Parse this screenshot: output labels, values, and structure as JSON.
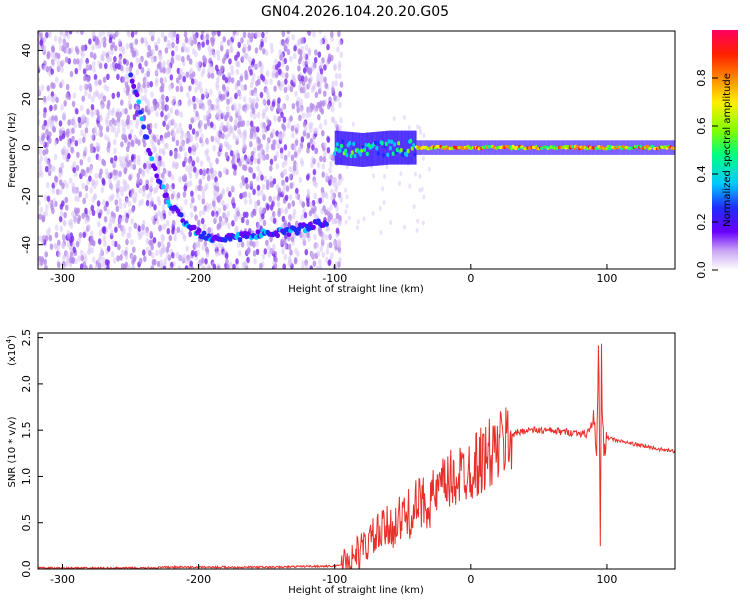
{
  "title": "GN04.2026.104.20.20.G05",
  "chart_data": [
    {
      "type": "heatmap",
      "xlabel": "Height of straight line (km)",
      "ylabel": "Frequency (Hz)",
      "xlim": [
        -318,
        150
      ],
      "ylim": [
        -50,
        48
      ],
      "xticks": [
        -300,
        -200,
        -100,
        0,
        100
      ],
      "yticks": [
        -40,
        -20,
        0,
        20,
        40
      ],
      "colorbar": {
        "label": "Normalized spectral amplitude",
        "range": [
          0,
          1
        ],
        "ticks": [
          "0.0",
          "0.2",
          "0.4",
          "0.6",
          "0.8"
        ],
        "colors": [
          "#ffffff",
          "#c9a6f2",
          "#6a00ff",
          "#1f2cff",
          "#00c8ff",
          "#00ff80",
          "#80ff00",
          "#ffee00",
          "#ff8800",
          "#ff2000",
          "#ff0060"
        ]
      },
      "signal_track": {
        "curve": [
          {
            "x": -250,
            "y": 30
          },
          {
            "x": -245,
            "y": 20
          },
          {
            "x": -240,
            "y": 8
          },
          {
            "x": -235,
            "y": -5
          },
          {
            "x": -228,
            "y": -15
          },
          {
            "x": -220,
            "y": -24
          },
          {
            "x": -210,
            "y": -31
          },
          {
            "x": -200,
            "y": -35
          },
          {
            "x": -190,
            "y": -37
          },
          {
            "x": -175,
            "y": -37
          },
          {
            "x": -160,
            "y": -36
          },
          {
            "x": -145,
            "y": -35
          },
          {
            "x": -130,
            "y": -34
          },
          {
            "x": -115,
            "y": -32
          },
          {
            "x": -105,
            "y": -30
          }
        ],
        "band": [
          {
            "x": -100,
            "y": 0
          },
          {
            "x": -80,
            "y": -1
          },
          {
            "x": -60,
            "y": 0
          },
          {
            "x": -40,
            "y": 0
          },
          {
            "x": -20,
            "y": 0
          },
          {
            "x": 0,
            "y": 0
          },
          {
            "x": 20,
            "y": 0
          },
          {
            "x": 40,
            "y": 0
          },
          {
            "x": 60,
            "y": 0
          },
          {
            "x": 80,
            "y": 0
          },
          {
            "x": 100,
            "y": 0
          },
          {
            "x": 120,
            "y": 0
          },
          {
            "x": 150,
            "y": 0
          }
        ]
      }
    },
    {
      "type": "line",
      "xlabel": "Height of straight line (km)",
      "ylabel": "SNR (10 * v/v)",
      "yscale_label": "(x10",
      "yscale_exponent": "4",
      "xlim": [
        -318,
        150
      ],
      "ylim": [
        0,
        2.55
      ],
      "xticks": [
        -300,
        -200,
        -100,
        0,
        100
      ],
      "yticks": [
        "0.0",
        "0.5",
        "1.0",
        "1.5",
        "2.0",
        "2.5"
      ],
      "color": "#e8302a",
      "series": [
        {
          "x": [
            -318,
            -300,
            -280,
            -260,
            -240,
            -220,
            -200,
            -180,
            -160,
            -140,
            -120,
            -100,
            -95,
            -90,
            -85,
            -80,
            -75,
            -70,
            -65,
            -60,
            -55,
            -50,
            -45,
            -40,
            -35,
            -30,
            -25,
            -20,
            -15,
            -10,
            -5,
            0,
            5,
            10,
            15,
            20,
            25,
            30,
            40,
            50,
            60,
            70,
            80,
            85,
            90,
            92,
            94,
            95,
            96,
            97,
            98,
            100,
            105,
            110,
            120,
            130,
            140,
            150
          ],
          "values": [
            0.01,
            0.01,
            0.01,
            0.01,
            0.01,
            0.02,
            0.02,
            0.02,
            0.02,
            0.02,
            0.03,
            0.03,
            0.05,
            0.08,
            0.15,
            0.2,
            0.3,
            0.35,
            0.4,
            0.45,
            0.5,
            0.55,
            0.6,
            0.68,
            0.72,
            0.75,
            0.8,
            0.9,
            0.95,
            1.0,
            1.05,
            1.1,
            1.15,
            1.2,
            1.25,
            1.3,
            1.38,
            1.45,
            1.5,
            1.5,
            1.49,
            1.48,
            1.47,
            1.45,
            1.6,
            1.2,
            2.5,
            0.1,
            2.2,
            1.3,
            1.5,
            1.42,
            1.4,
            1.38,
            1.35,
            1.32,
            1.29,
            1.27
          ]
        }
      ]
    }
  ]
}
